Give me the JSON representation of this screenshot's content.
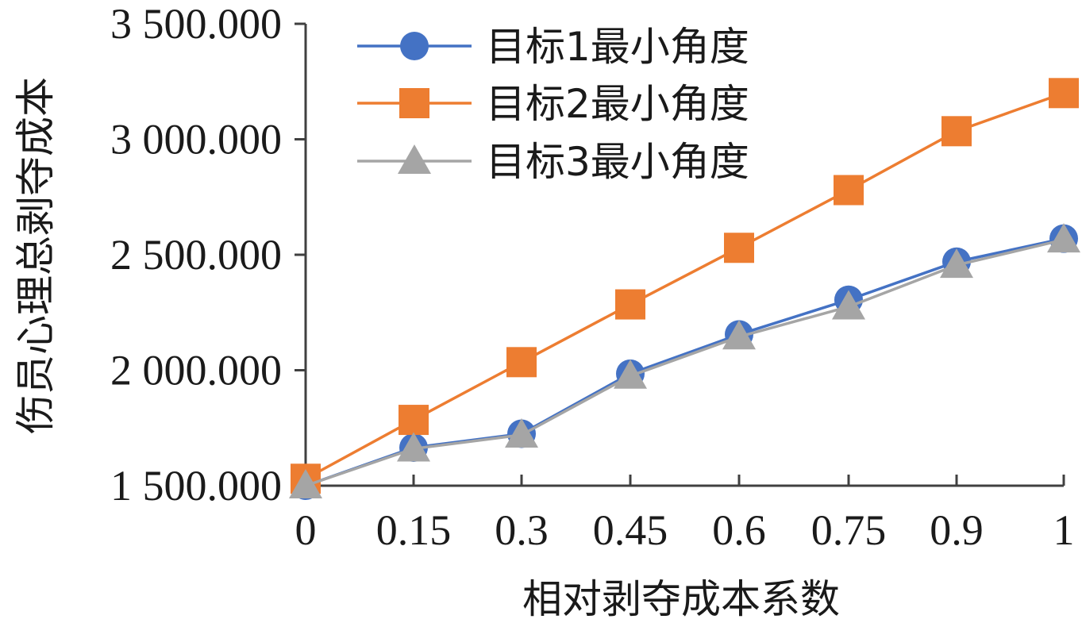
{
  "chart_data": {
    "type": "line",
    "title": "",
    "xlabel": "相对剥夺成本系数",
    "ylabel": "伤员心理总剥夺成本",
    "x": [
      "0",
      "0.15",
      "0.3",
      "0.45",
      "0.6",
      "0.75",
      "0.9",
      "1"
    ],
    "y_ticks": [
      "1 500.000",
      "2 000.000",
      "2 500.000",
      "3 000.000",
      "3 500.000"
    ],
    "ylim": [
      1500,
      3500
    ],
    "grid": false,
    "legend_position": "top-left",
    "series": [
      {
        "name": "目标1最小角度",
        "color": "#4472C4",
        "marker": "circle",
        "values": [
          1500,
          1665,
          1725,
          1985,
          2155,
          2305,
          2470,
          2570
        ]
      },
      {
        "name": "目标2最小角度",
        "color": "#ED7D31",
        "marker": "square",
        "values": [
          1530,
          1785,
          2035,
          2285,
          2530,
          2780,
          3035,
          3200
        ]
      },
      {
        "name": "目标3最小角度",
        "color": "#A5A5A5",
        "marker": "triangle",
        "values": [
          1500,
          1660,
          1720,
          1975,
          2145,
          2275,
          2455,
          2565
        ]
      }
    ]
  }
}
